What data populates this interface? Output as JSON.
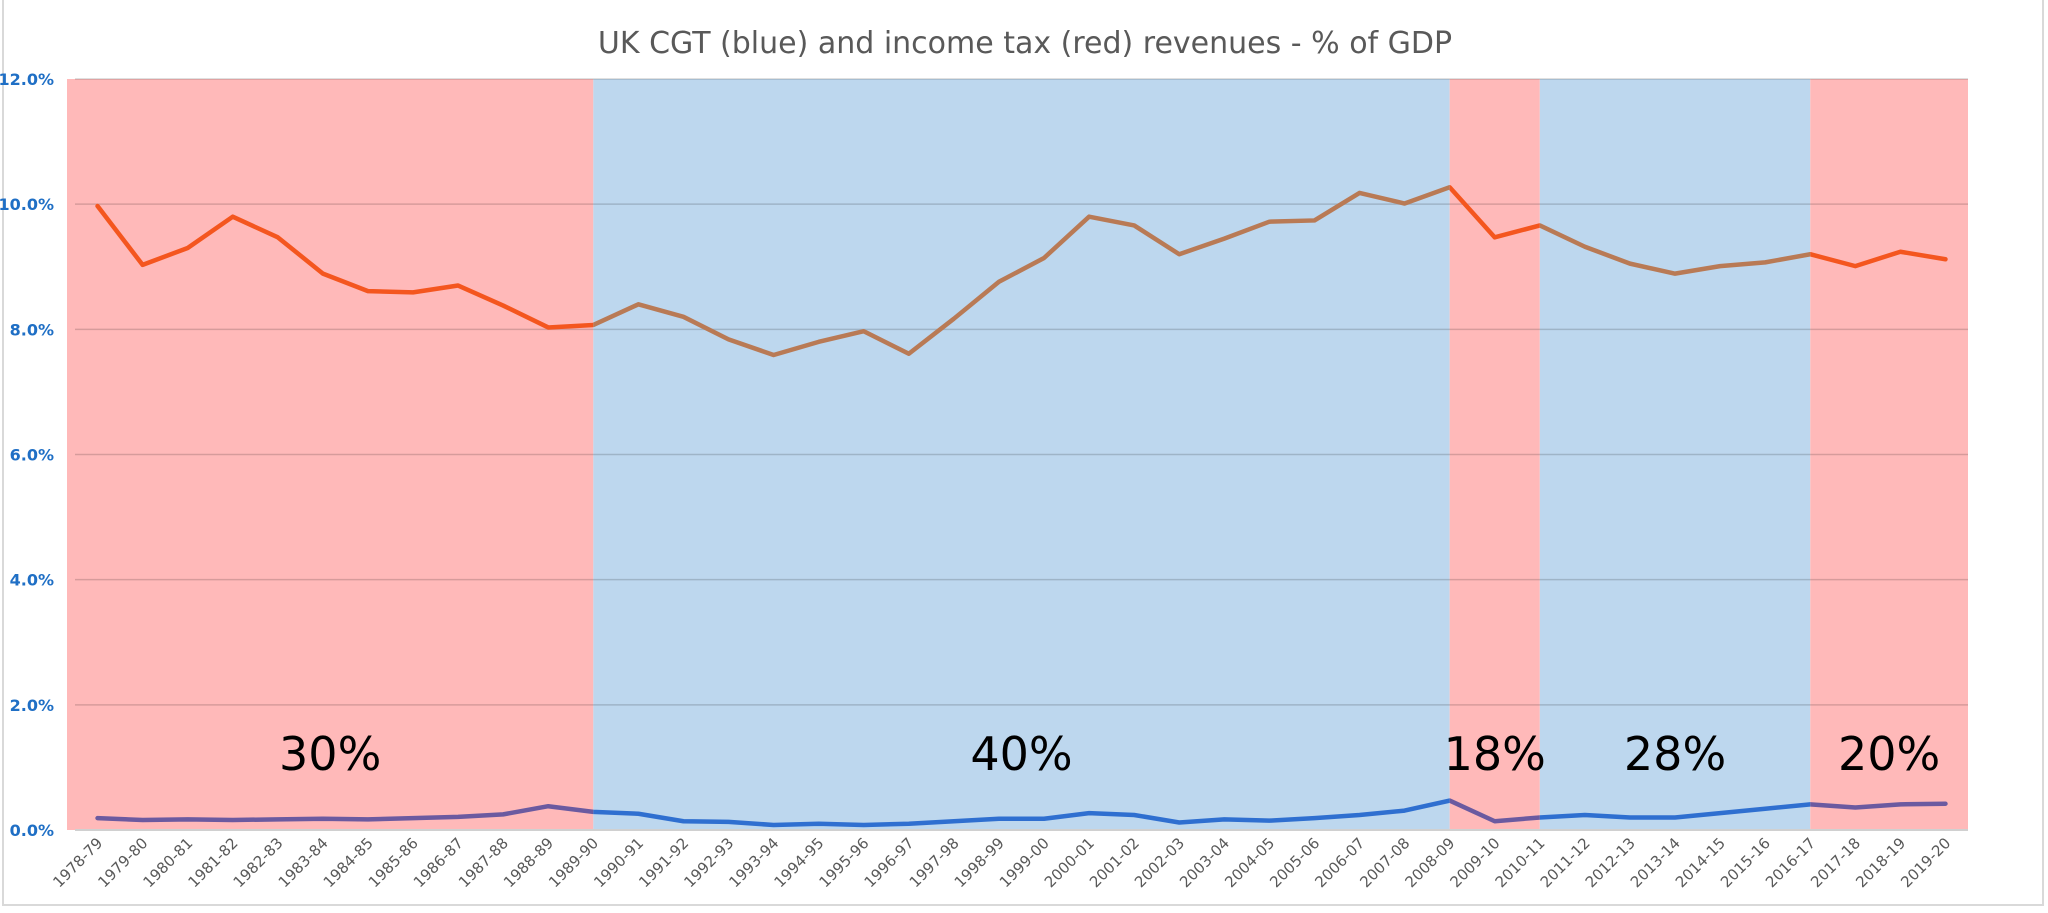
{
  "chart_data": {
    "type": "line",
    "title": "UK CGT (blue) and income tax (red) revenues - % of GDP",
    "xlabel": "",
    "ylabel": "",
    "ylim": [
      0,
      12
    ],
    "yticks": [
      "0.0%",
      "2.0%",
      "4.0%",
      "6.0%",
      "8.0%",
      "10.0%",
      "12.0%"
    ],
    "grid": true,
    "legend": "none",
    "categories": [
      "1978-79",
      "1979-80",
      "1980-81",
      "1981-82",
      "1982-83",
      "1983-84",
      "1984-85",
      "1985-86",
      "1986-87",
      "1987-88",
      "1988-89",
      "1989-90",
      "1990-91",
      "1991-92",
      "1992-93",
      "1993-94",
      "1994-95",
      "1995-96",
      "1996-97",
      "1997-98",
      "1998-99",
      "1999-00",
      "2000-01",
      "2001-02",
      "2002-03",
      "2003-04",
      "2004-05",
      "2005-06",
      "2006-07",
      "2007-08",
      "2008-09",
      "2009-10",
      "2010-11",
      "2011-12",
      "2012-13",
      "2013-14",
      "2014-15",
      "2015-16",
      "2016-17",
      "2017-18",
      "2018-19",
      "2019-20"
    ],
    "series": [
      {
        "key": "income_tax",
        "values": [
          9.97,
          9.03,
          9.3,
          9.8,
          9.47,
          8.89,
          8.61,
          8.59,
          8.7,
          8.38,
          8.03,
          8.07,
          8.4,
          8.2,
          7.84,
          7.59,
          7.8,
          7.97,
          7.61,
          8.17,
          8.76,
          9.14,
          9.8,
          9.66,
          9.2,
          9.45,
          9.72,
          9.74,
          10.18,
          10.01,
          10.27,
          9.47,
          9.66,
          9.32,
          9.05,
          8.89,
          9.01,
          9.07,
          9.2,
          9.01,
          9.24,
          9.12
        ],
        "color_red_band": "#f4561f",
        "color_blue_band": "#b97a55"
      },
      {
        "key": "cgt",
        "values": [
          0.19,
          0.16,
          0.17,
          0.16,
          0.17,
          0.18,
          0.17,
          0.19,
          0.21,
          0.25,
          0.38,
          0.29,
          0.26,
          0.14,
          0.13,
          0.08,
          0.1,
          0.08,
          0.1,
          0.14,
          0.18,
          0.18,
          0.27,
          0.24,
          0.12,
          0.17,
          0.15,
          0.19,
          0.24,
          0.31,
          0.47,
          0.14,
          0.2,
          0.24,
          0.2,
          0.2,
          0.27,
          0.34,
          0.41,
          0.36,
          0.41,
          0.42
        ],
        "color_red_band": "#6b5aa0",
        "color_blue_band": "#2f6fd0"
      }
    ],
    "bands": [
      {
        "label": "30%",
        "from": "1978-79",
        "to": "1989-90",
        "color": "#ffb9b9"
      },
      {
        "label": "40%",
        "from": "1989-90",
        "to": "2008-09",
        "color": "#bdd7ee"
      },
      {
        "label": "18%",
        "from": "2008-09",
        "to": "2010-11",
        "color": "#ffb9b9"
      },
      {
        "label": "28%",
        "from": "2010-11",
        "to": "2016-17",
        "color": "#bdd7ee"
      },
      {
        "label": "20%",
        "from": "2016-17",
        "to": "2019-20",
        "color": "#ffb9b9"
      }
    ]
  }
}
